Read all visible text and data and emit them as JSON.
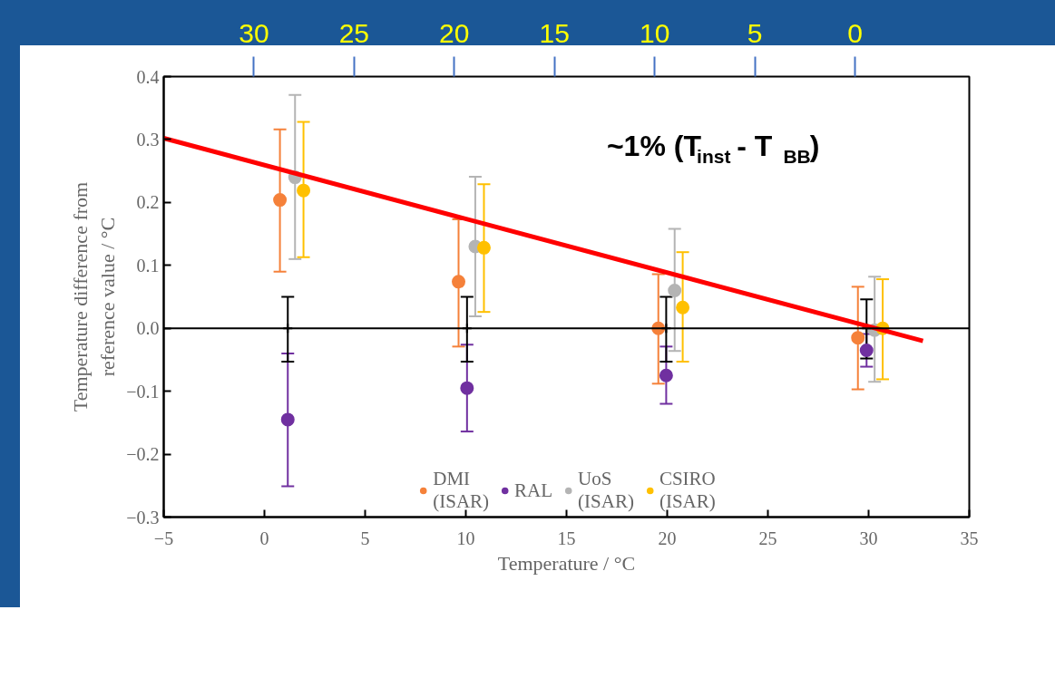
{
  "chart_data": {
    "type": "scatter",
    "xlabel": "Temperature / °C",
    "ylabel": "Temperature difference from\nreference value / °C",
    "xlim": [
      -5,
      35
    ],
    "xticks": [
      -5,
      0,
      5,
      10,
      15,
      20,
      25,
      30,
      35
    ],
    "ylim": [
      -0.3,
      0.4
    ],
    "yticks": [
      0.4,
      0.3,
      0.2,
      0.1,
      {
        "value": 0,
        "label": "0.0"
      },
      -0.1,
      -0.2,
      -0.3
    ],
    "x2lim": [
      34.5,
      -5.7
    ],
    "x2ticks": [
      30,
      25,
      20,
      15,
      10,
      5,
      0
    ],
    "legend": "bottom",
    "grid": false,
    "ref_lines": [
      {
        "axis": "y",
        "value": 0,
        "color": "#000000"
      }
    ],
    "annotations": [
      "~1% (T$_{inst}$- T$_{BB}$)"
    ],
    "series": [
      {
        "name": "DMI\n(ISAR)",
        "marker": "circle",
        "color": "#f5813a",
        "x": [
          0.77,
          9.64,
          19.56,
          29.47
        ],
        "values": [
          0.204,
          0.074,
          0.0,
          -0.015
        ],
        "errors": [
          [
            0.09,
            0.316
          ],
          [
            -0.029,
            0.173
          ],
          [
            -0.088,
            0.086
          ],
          [
            -0.097,
            0.066
          ]
        ]
      },
      {
        "name": "RAL",
        "marker": "circle",
        "color": "#7030a0",
        "x": [
          1.16,
          10.06,
          19.95,
          29.9
        ],
        "values": [
          -0.145,
          -0.095,
          -0.075,
          -0.035
        ],
        "errors": [
          [
            -0.251,
            -0.04
          ],
          [
            -0.164,
            -0.026
          ],
          [
            -0.12,
            -0.029
          ],
          [
            -0.061,
            -0.009
          ]
        ]
      },
      {
        "name": "UoS\n(ISAR)",
        "marker": "circle",
        "color": "#b4b4b4",
        "x": [
          1.52,
          10.47,
          20.37,
          30.3
        ],
        "values": [
          0.24,
          0.13,
          0.06,
          -0.003
        ],
        "errors": [
          [
            0.11,
            0.371
          ],
          [
            0.019,
            0.241
          ],
          [
            -0.036,
            0.158
          ],
          [
            -0.085,
            0.082
          ]
        ]
      },
      {
        "name": "CSIRO\n(ISAR)",
        "marker": "circle",
        "color": "#ffc000",
        "x": [
          1.94,
          10.9,
          20.77,
          30.7
        ],
        "values": [
          0.219,
          0.128,
          0.033,
          0.0
        ],
        "errors": [
          [
            0.113,
            0.328
          ],
          [
            0.026,
            0.229
          ],
          [
            -0.053,
            0.121
          ],
          [
            -0.081,
            0.078
          ]
        ]
      },
      {
        "color": "#000000",
        "marker": "cross",
        "x": [
          1.16,
          10.06,
          19.95,
          29.9
        ],
        "values": [
          0,
          0,
          0,
          0
        ],
        "errors": [
          [
            -0.053,
            0.05
          ],
          [
            -0.053,
            0.05
          ],
          [
            -0.053,
            0.05
          ],
          [
            -0.048,
            0.046
          ]
        ]
      },
      {
        "type": "line",
        "color": "#ff0000",
        "x": [
          -5,
          32.7
        ],
        "values": [
          0.302,
          -0.02
        ]
      }
    ]
  }
}
